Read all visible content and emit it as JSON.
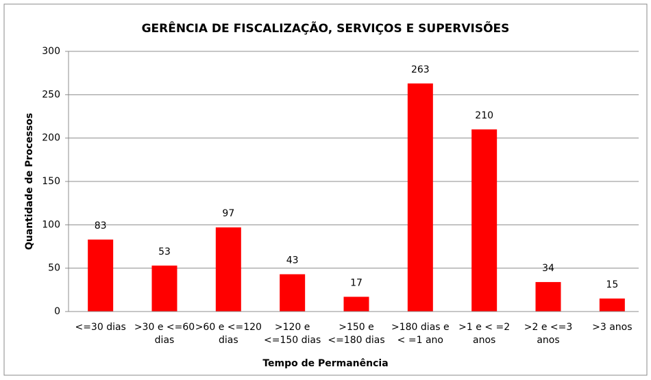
{
  "chart_data": {
    "type": "bar",
    "title": "GERÊNCIA DE FISCALIZAÇÃO, SERVIÇOS E SUPERVISÕES",
    "x_label": "Tempo de Permanência",
    "y_label": "Quantidade de Processos",
    "categories": [
      "<=30 dias",
      ">30 e <=60\ndias",
      ">60 e <=120\ndias",
      ">120 e\n<=150 dias",
      ">150 e\n<=180 dias",
      ">180 dias e\n< =1 ano",
      ">1 e < =2\nanos",
      ">2 e <=3\nanos",
      ">3 anos"
    ],
    "values": [
      83,
      53,
      97,
      43,
      17,
      263,
      210,
      34,
      15
    ],
    "color": "#ff0000",
    "ylim": [
      0,
      300
    ],
    "yticks": [
      0,
      50,
      100,
      150,
      200,
      250,
      300
    ],
    "grid": true
  }
}
